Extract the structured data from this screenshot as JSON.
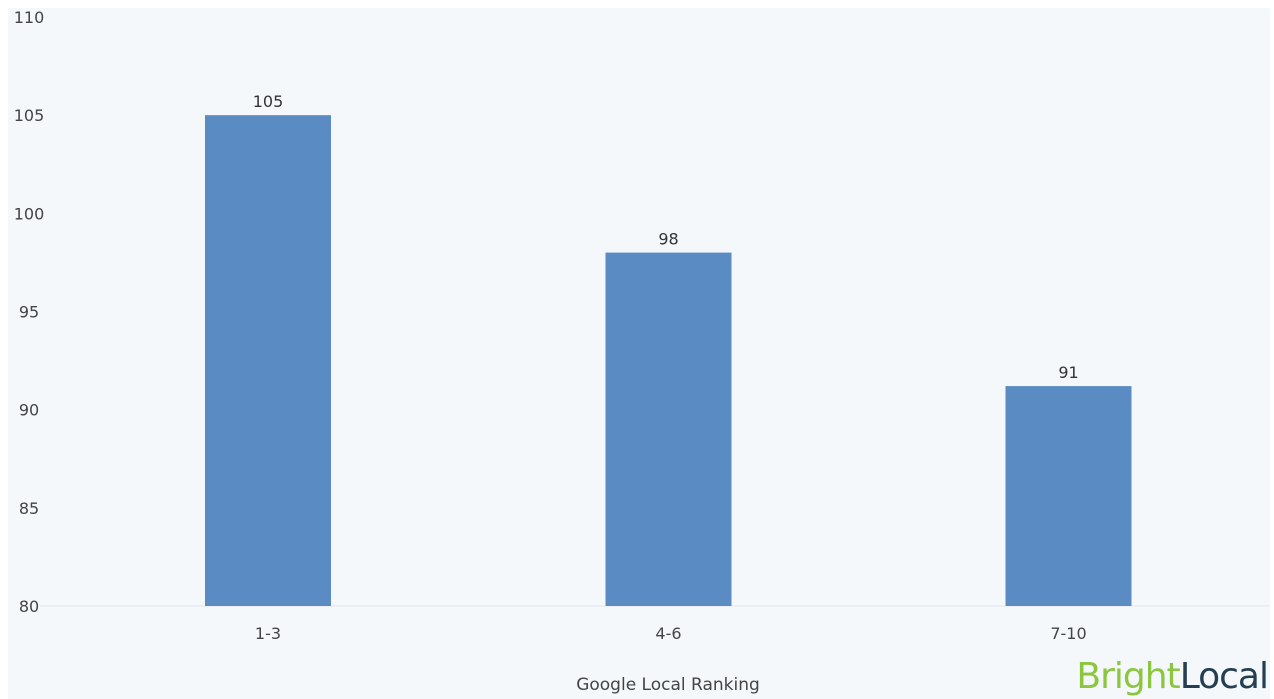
{
  "chart_data": {
    "type": "bar",
    "categories": [
      "1-3",
      "4-6",
      "7-10"
    ],
    "values": [
      105,
      98,
      91
    ],
    "value_labels": [
      "105",
      "98",
      "91"
    ],
    "bar_tops": [
      105,
      98,
      91.2
    ],
    "title": "",
    "xlabel": "Google Local Ranking",
    "ylabel": "",
    "ylim": [
      80,
      110
    ],
    "yticks": [
      80,
      85,
      90,
      95,
      100,
      105,
      110
    ],
    "grid": false,
    "legend": "none"
  },
  "colors": {
    "bar": "#5b8bc3",
    "plot_background": "#f5f8fb",
    "logo_bright": "#8cc63f",
    "logo_local": "#243e52"
  },
  "logo": {
    "bright": "Bright",
    "local": "Local"
  }
}
